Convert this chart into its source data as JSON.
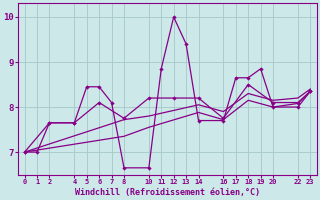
{
  "xlabel": "Windchill (Refroidissement éolien,°C)",
  "xlim": [
    -0.5,
    23.5
  ],
  "ylim": [
    6.5,
    10.3
  ],
  "xticks": [
    0,
    1,
    2,
    4,
    5,
    6,
    7,
    8,
    10,
    11,
    12,
    13,
    14,
    16,
    17,
    18,
    19,
    20,
    22,
    23
  ],
  "yticks": [
    7,
    8,
    9,
    10
  ],
  "bg_color": "#cce8e8",
  "grid_color": "#aacccc",
  "line_color": "#880088",
  "line1_x": [
    0,
    1,
    2,
    4,
    5,
    6,
    7,
    8,
    10,
    11,
    12,
    13,
    14,
    16,
    17,
    18,
    19,
    20,
    22,
    23
  ],
  "line1_y": [
    7.0,
    7.0,
    7.65,
    7.65,
    8.45,
    8.45,
    8.1,
    6.65,
    6.65,
    8.85,
    10.0,
    9.4,
    7.7,
    7.7,
    8.65,
    8.65,
    8.85,
    8.0,
    8.0,
    8.35
  ],
  "line2_x": [
    0,
    2,
    4,
    6,
    8,
    10,
    12,
    14,
    16,
    18,
    20,
    22,
    23
  ],
  "line2_y": [
    7.0,
    7.65,
    7.65,
    8.1,
    7.75,
    8.2,
    8.2,
    8.2,
    7.75,
    8.5,
    8.1,
    8.1,
    8.35
  ],
  "line3_x": [
    0,
    8,
    10,
    14,
    16,
    18,
    20,
    22,
    23
  ],
  "line3_y": [
    7.0,
    7.72,
    7.8,
    8.05,
    7.9,
    8.3,
    8.15,
    8.2,
    8.4
  ],
  "line4_x": [
    0,
    8,
    10,
    14,
    16,
    18,
    20,
    22,
    23
  ],
  "line4_y": [
    7.0,
    7.35,
    7.55,
    7.88,
    7.72,
    8.15,
    8.0,
    8.08,
    8.35
  ]
}
